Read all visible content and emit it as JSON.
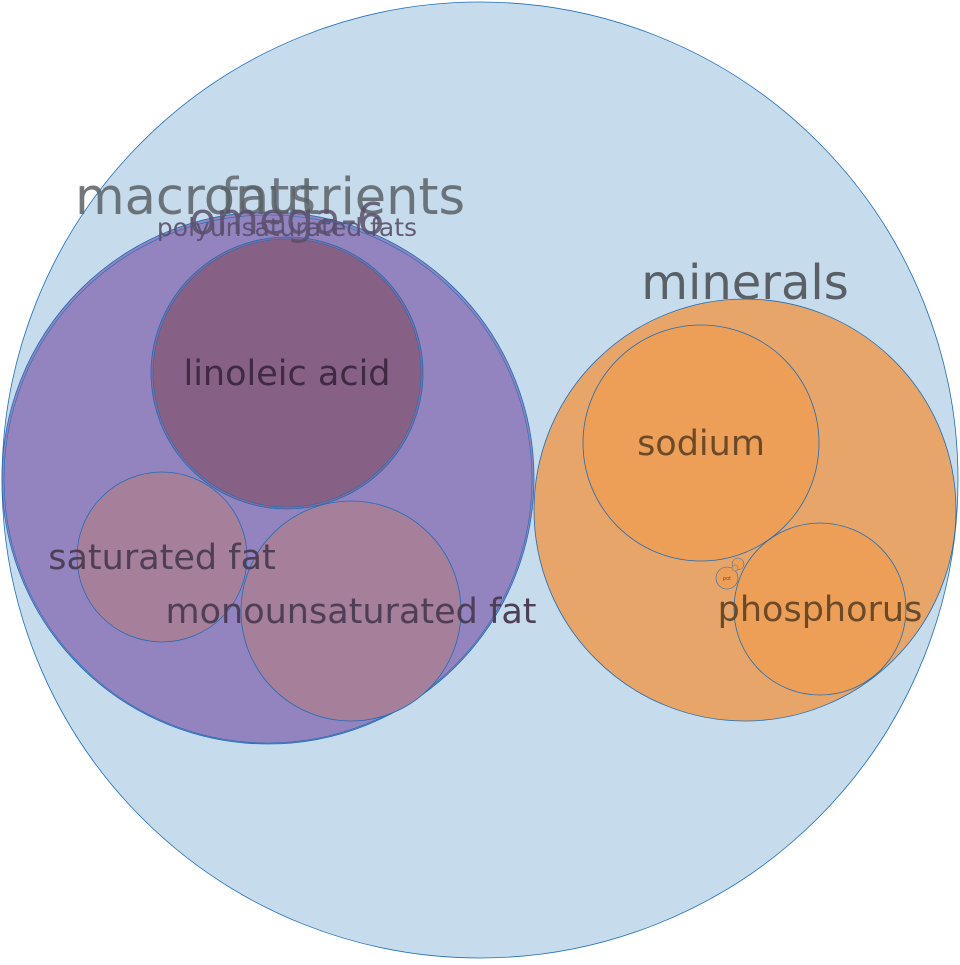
{
  "diagram": {
    "type": "circle-packing",
    "colors": {
      "root": "#c6dcec",
      "fats": "#9384c0",
      "polyunsaturated": "#8b6a9a",
      "leaf_fat": "#a67f9a",
      "minerals": "#e8a56a",
      "leaf_mineral": "#ee9f57",
      "stroke": "#1f6db5",
      "label_dark": "#5a6066"
    },
    "nodes": {
      "root": {
        "label": ""
      },
      "macronutrients": {
        "label": "macronutrients"
      },
      "fats": {
        "label": "fats"
      },
      "omega6": {
        "label": "omega-6"
      },
      "polyunsaturated": {
        "label": "polyunsaturated fats"
      },
      "linoleic": {
        "label": "linoleic acid"
      },
      "saturated": {
        "label": "saturated fat"
      },
      "monounsaturated": {
        "label": "monounsaturated fat"
      },
      "minerals": {
        "label": "minerals"
      },
      "sodium": {
        "label": "sodium"
      },
      "phosphorus": {
        "label": "phosphorus"
      },
      "small_a": {
        "label": "pot"
      },
      "small_b": {
        "label": ""
      },
      "small_c": {
        "label": ""
      }
    }
  }
}
